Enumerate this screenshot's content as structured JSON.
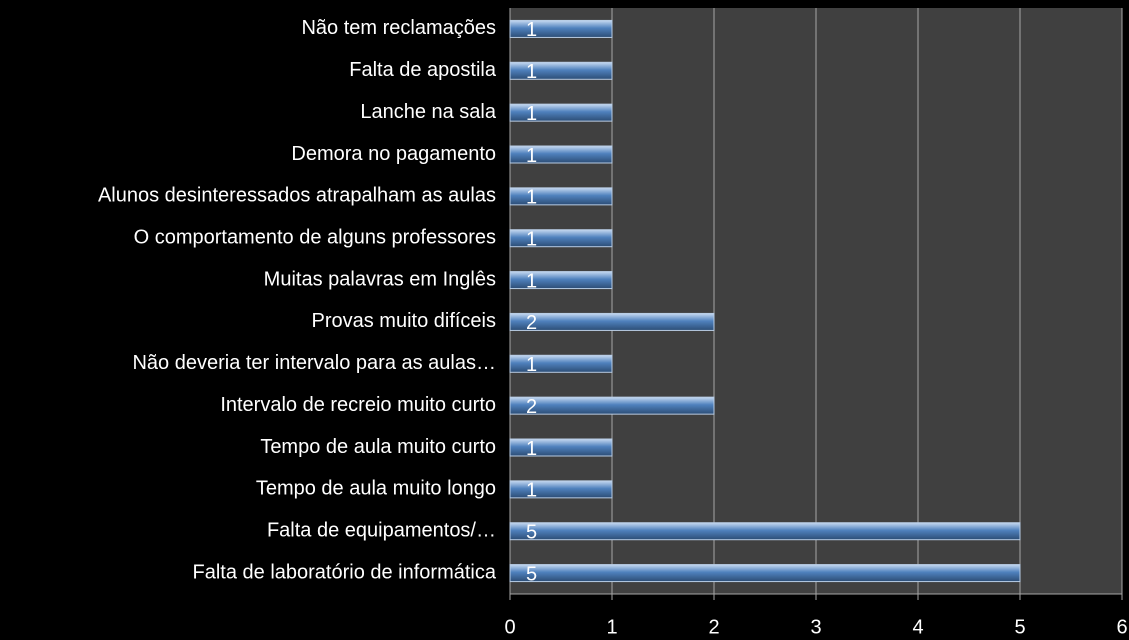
{
  "chart_data": {
    "type": "bar",
    "orientation": "horizontal",
    "categories": [
      "Não tem reclamações",
      "Falta de apostila",
      "Lanche na sala",
      "Demora no pagamento",
      "Alunos desinteressados atrapalham as aulas",
      "O comportamento de alguns professores",
      "Muitas palavras em Inglês",
      "Provas muito difíceis",
      "Não deveria ter intervalo para as aulas…",
      "Intervalo de recreio muito curto",
      "Tempo de aula muito curto",
      "Tempo de aula muito longo",
      "Falta de equipamentos/…",
      "Falta de laboratório de informática"
    ],
    "values": [
      1,
      1,
      1,
      1,
      1,
      1,
      1,
      2,
      1,
      2,
      1,
      1,
      5,
      5
    ],
    "color": "#4f81bd",
    "xlim": [
      0,
      6
    ],
    "xticks": [
      0,
      1,
      2,
      3,
      4,
      5,
      6
    ],
    "grid": true
  }
}
